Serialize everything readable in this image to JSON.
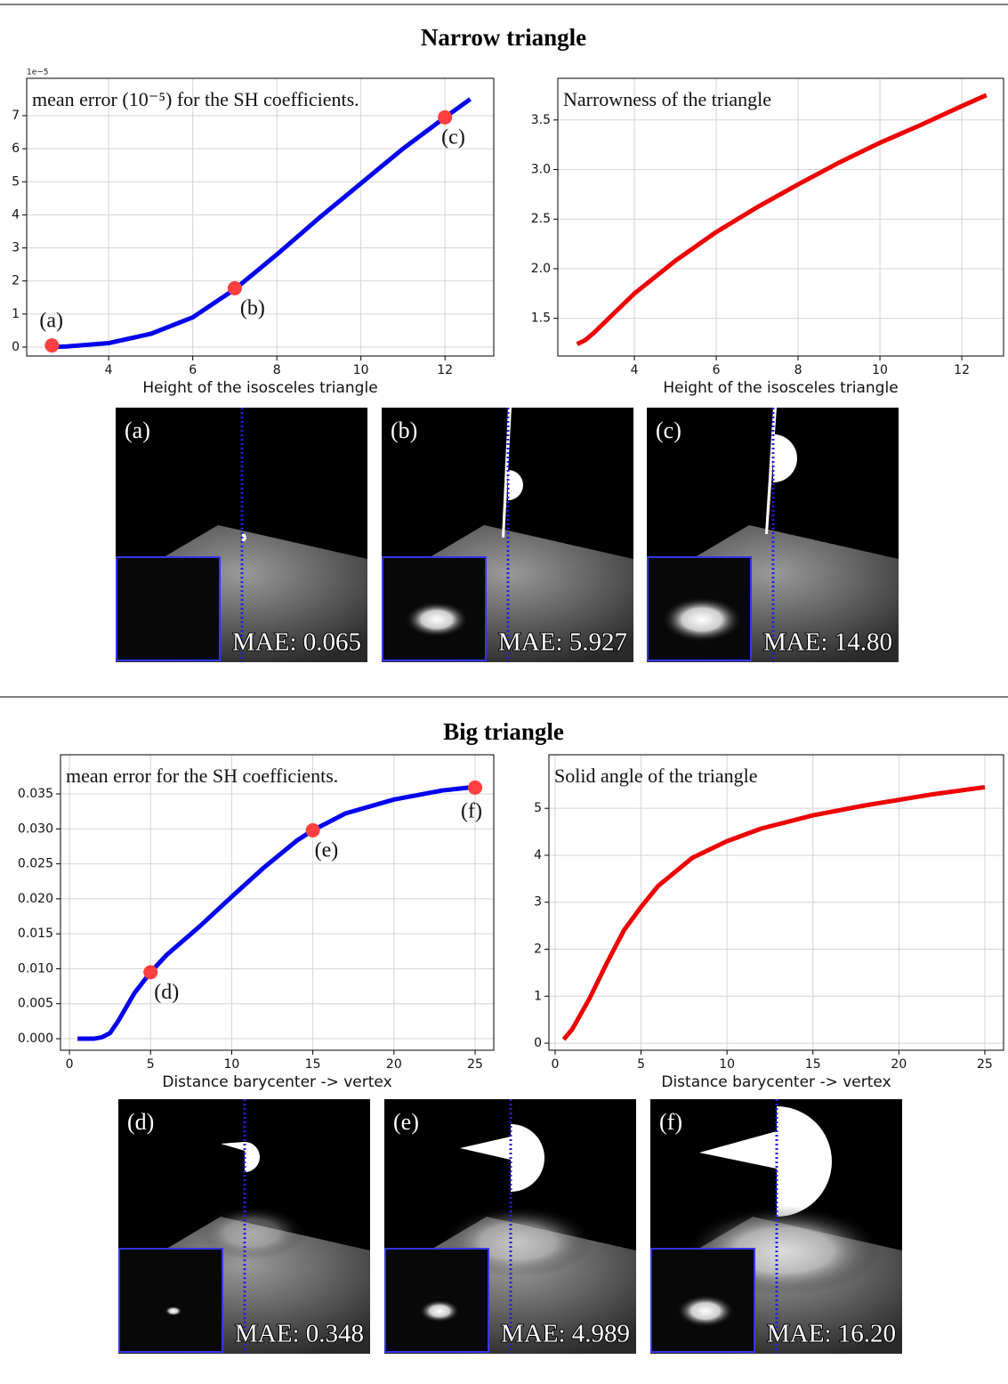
{
  "sections": [
    {
      "title": "Narrow triangle",
      "chart_data": [
        {
          "type": "line",
          "offset_label": "1e−5",
          "annotation": "mean error (10⁻⁵) for the SH coefficients.",
          "xlabel": "Height of the isosceles triangle",
          "x": [
            2.6,
            3,
            4,
            5,
            6,
            7,
            8,
            9,
            10,
            11,
            12,
            12.6
          ],
          "series": [
            {
              "color": "#0000ee",
              "values": [
                0,
                0.02,
                0.12,
                0.4,
                0.9,
                1.75,
                2.8,
                3.9,
                4.95,
                6.0,
                6.95,
                7.5
              ]
            }
          ],
          "points": {
            "color": "#ff4040",
            "x": [
              2.65,
              7,
              12
            ],
            "values": [
              0.05,
              1.78,
              6.95
            ],
            "labels": [
              "(a)",
              "(b)",
              "(c)"
            ]
          },
          "xlim": [
            2.05,
            13.16
          ],
          "ylim": [
            -0.27,
            8.13
          ],
          "xticks": [
            4,
            6,
            8,
            10,
            12
          ],
          "yticks": [
            0,
            1,
            2,
            3,
            4,
            5,
            6,
            7
          ],
          "grid": true
        },
        {
          "type": "line",
          "annotation": "Narrowness of the triangle",
          "xlabel": "Height of the isosceles triangle",
          "x": [
            2.6,
            2.8,
            3,
            4,
            5,
            6,
            7,
            8,
            9,
            10,
            11,
            12,
            12.6
          ],
          "series": [
            {
              "color": "#ee0000",
              "values": [
                1.24,
                1.28,
                1.35,
                1.75,
                2.08,
                2.37,
                2.62,
                2.85,
                3.07,
                3.27,
                3.45,
                3.64,
                3.75
              ]
            }
          ],
          "xlim": [
            2.13,
            13.02
          ],
          "ylim": [
            1.12,
            3.92
          ],
          "xticks": [
            4,
            6,
            8,
            10,
            12
          ],
          "yticks": [
            1.5,
            {
              "value": 2,
              "label": "2.0"
            },
            2.5,
            {
              "value": 3,
              "label": "3.0"
            },
            3.5
          ],
          "grid": true
        }
      ],
      "images": [
        {
          "label": "(a)",
          "mae": "MAE: 0.065"
        },
        {
          "label": "(b)",
          "mae": "MAE: 5.927"
        },
        {
          "label": "(c)",
          "mae": "MAE: 14.80"
        }
      ]
    },
    {
      "title": "Big triangle",
      "chart_data": [
        {
          "type": "line",
          "annotation": "mean error for the SH coefficients.",
          "xlabel": "Distance barycenter -> vertex",
          "x": [
            0.5,
            1.5,
            2,
            2.5,
            3,
            4,
            5,
            6,
            8,
            10,
            12,
            14,
            15,
            17,
            20,
            23,
            25
          ],
          "series": [
            {
              "color": "#0000ee",
              "values": [
                0,
                0,
                0.0002,
                0.0008,
                0.0025,
                0.0065,
                0.0095,
                0.012,
                0.016,
                0.0203,
                0.0245,
                0.0283,
                0.0298,
                0.0322,
                0.0342,
                0.0355,
                0.036
              ]
            }
          ],
          "points": {
            "color": "#ff4040",
            "x": [
              5,
              15,
              25
            ],
            "values": [
              0.0095,
              0.0298,
              0.0359
            ],
            "labels": [
              "(d)",
              "(e)",
              "(f)"
            ]
          },
          "xlim": [
            -0.55,
            26.15
          ],
          "ylim": [
            -0.00165,
            0.0406
          ],
          "xticks": [
            0,
            5,
            10,
            15,
            20,
            25
          ],
          "yticks": [
            {
              "value": 0,
              "label": "0.000"
            },
            {
              "value": 0.005,
              "label": "0.005"
            },
            {
              "value": 0.01,
              "label": "0.010"
            },
            {
              "value": 0.015,
              "label": "0.015"
            },
            {
              "value": 0.02,
              "label": "0.020"
            },
            {
              "value": 0.025,
              "label": "0.025"
            },
            {
              "value": 0.03,
              "label": "0.030"
            },
            {
              "value": 0.035,
              "label": "0.035"
            }
          ],
          "grid": true
        },
        {
          "type": "line",
          "annotation": "Solid angle of the triangle",
          "xlabel": "Distance barycenter -> vertex",
          "x": [
            0.5,
            1,
            2,
            3,
            4,
            5,
            6,
            8,
            10,
            12,
            15,
            18,
            20,
            22,
            25
          ],
          "series": [
            {
              "color": "#ee0000",
              "values": [
                0.08,
                0.3,
                0.95,
                1.7,
                2.4,
                2.9,
                3.35,
                3.95,
                4.3,
                4.57,
                4.85,
                5.06,
                5.18,
                5.3,
                5.45
              ]
            }
          ],
          "xlim": [
            -0.36,
            26.09
          ],
          "ylim": [
            -0.15,
            6.14
          ],
          "xticks": [
            0,
            5,
            10,
            15,
            20,
            25
          ],
          "yticks": [
            0,
            1,
            2,
            3,
            4,
            5
          ],
          "grid": true
        }
      ],
      "images": [
        {
          "label": "(d)",
          "mae": "MAE: 0.348"
        },
        {
          "label": "(e)",
          "mae": "MAE: 4.989"
        },
        {
          "label": "(f)",
          "mae": "MAE: 16.20"
        }
      ]
    }
  ]
}
